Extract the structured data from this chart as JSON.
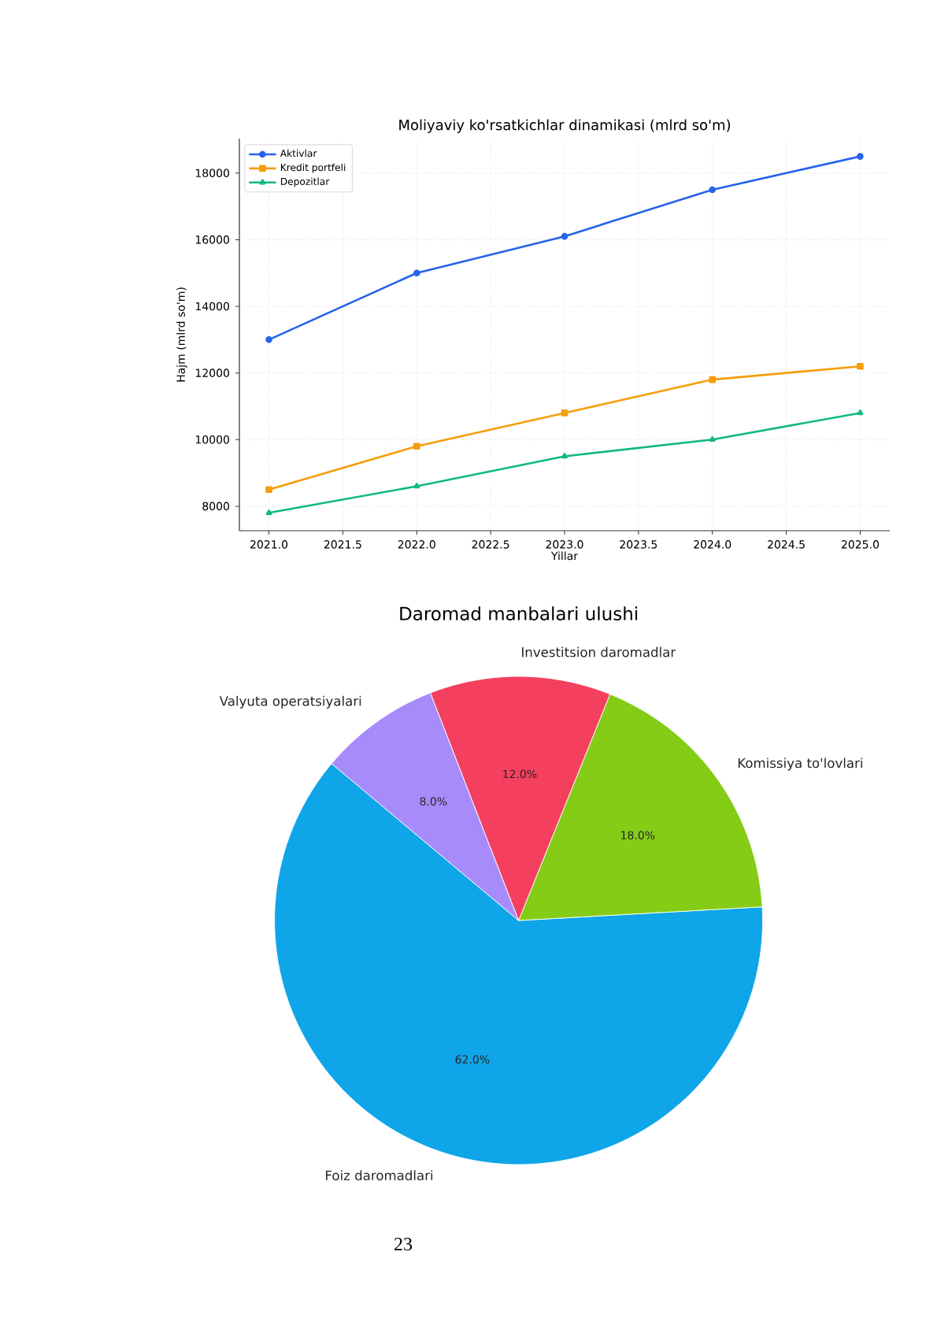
{
  "chart_data": [
    {
      "type": "line",
      "title": "Moliyaviy ko'rsatkichlar dinamikasi (mlrd so'm)",
      "xlabel": "Yillar",
      "ylabel": "Hajm (mlrd so'm)",
      "x": [
        2021,
        2022,
        2023,
        2024,
        2025
      ],
      "series": [
        {
          "name": "Aktivlar",
          "color": "#2563eb",
          "marker": "circle",
          "values": [
            13000,
            15000,
            16100,
            17500,
            18500
          ]
        },
        {
          "name": "Kredit portfeli",
          "color": "#f59e0b",
          "marker": "square",
          "values": [
            8500,
            9800,
            10800,
            11800,
            12200
          ]
        },
        {
          "name": "Depozitlar",
          "color": "#10b981",
          "marker": "triangle",
          "values": [
            7800,
            8600,
            9500,
            10000,
            10800
          ]
        }
      ],
      "xlim": [
        2020.8,
        2025.2
      ],
      "xticks": [
        {
          "value": 2021,
          "label": "2021.0"
        },
        {
          "value": 2021.5,
          "label": "2021.5"
        },
        {
          "value": 2022,
          "label": "2022.0"
        },
        {
          "value": 2022.5,
          "label": "2022.5"
        },
        {
          "value": 2023,
          "label": "2023.0"
        },
        {
          "value": 2023.5,
          "label": "2023.5"
        },
        {
          "value": 2024,
          "label": "2024.0"
        },
        {
          "value": 2024.5,
          "label": "2024.5"
        },
        {
          "value": 2025,
          "label": "2025.0"
        }
      ],
      "ylim": [
        7265,
        19035
      ],
      "yticks": [
        8000,
        10000,
        12000,
        14000,
        16000,
        18000
      ],
      "grid": true,
      "legend": "top left",
      "line_style": "solid"
    },
    {
      "type": "pie",
      "title": "Daromad manbalari ulushi",
      "categories": [
        "Foiz daromadlari",
        "Komissiya to'lovlari",
        "Investitsion daromadlar",
        "Valyuta operatsiyalari"
      ],
      "values": [
        62,
        18,
        12,
        8
      ],
      "colors": [
        "#0ea5e9",
        "#84cc16",
        "#f43f5e",
        "#a78bfa"
      ],
      "value_labels": [
        "62.0%",
        "18.0%",
        "12.0%",
        "8.0%"
      ],
      "annotations": [
        "23"
      ]
    }
  ]
}
